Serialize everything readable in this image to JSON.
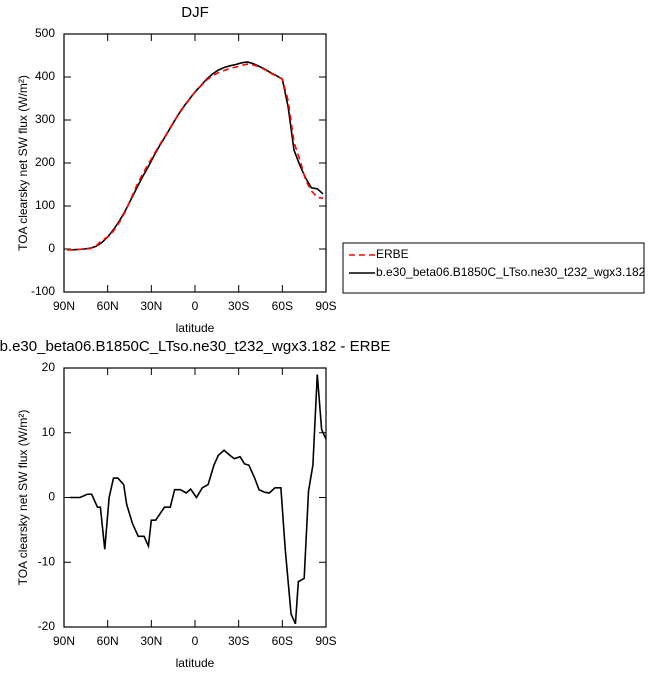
{
  "chart_data": [
    {
      "type": "line",
      "title": "DJF",
      "xlabel": "latitude",
      "ylabel": "TOA clearsky net SW flux (W/m²)",
      "x": [
        88,
        84,
        80,
        76,
        72,
        68,
        64,
        60,
        56,
        52,
        48,
        44,
        40,
        36,
        32,
        28,
        24,
        20,
        16,
        12,
        8,
        4,
        0,
        -4,
        -8,
        -12,
        -16,
        -20,
        -24,
        -28,
        -32,
        -36,
        -40,
        -44,
        -48,
        -52,
        -56,
        -60,
        -64,
        -68,
        -72,
        -76,
        -80,
        -84,
        -88
      ],
      "series": [
        {
          "name": "ERBE",
          "color": "#ff0000",
          "style": "dashed",
          "values": [
            -2,
            -2,
            -1,
            0,
            1,
            7,
            20,
            28,
            42,
            62,
            86,
            117,
            148,
            174,
            198,
            221,
            244,
            265,
            288,
            309,
            329,
            347,
            365,
            379,
            393,
            403,
            410,
            415,
            420,
            423,
            427,
            430,
            428,
            424,
            417,
            409,
            402,
            395,
            345,
            248,
            208,
            160,
            135,
            120,
            118
          ]
        },
        {
          "name": "b.e30_beta06.B1850C_LTso.ne30_t232_wgx3.182",
          "color": "#000000",
          "style": "solid",
          "values": [
            -2,
            -2,
            -1,
            0,
            2,
            6,
            15,
            28,
            45,
            65,
            88,
            115,
            142,
            168,
            192,
            218,
            242,
            264,
            287,
            310,
            330,
            348,
            365,
            380,
            395,
            407,
            416,
            422,
            426,
            429,
            433,
            435,
            431,
            425,
            418,
            410,
            403,
            395,
            330,
            230,
            195,
            165,
            142,
            140,
            128
          ]
        }
      ],
      "xlim": [
        90,
        -90
      ],
      "xticks": [
        {
          "value": 90,
          "label": "90N"
        },
        {
          "value": 60,
          "label": "60N"
        },
        {
          "value": 30,
          "label": "30N"
        },
        0,
        {
          "value": -30,
          "label": "30S"
        },
        {
          "value": -60,
          "label": "60S"
        },
        {
          "value": -90,
          "label": "90S"
        }
      ],
      "ylim": [
        -100,
        500
      ],
      "yticks": [
        -100,
        0,
        100,
        200,
        300,
        400,
        500
      ],
      "legend": "right"
    },
    {
      "type": "line",
      "title": "b.e30_beta06.B1850C_LTso.ne30_t232_wgx3.182 - ERBE",
      "xlabel": "latitude",
      "ylabel": "TOA clearsky net SW flux (W/m²)",
      "x": [
        86,
        82,
        79,
        74,
        71,
        67,
        65,
        62,
        59,
        56,
        53,
        49,
        47,
        43,
        39,
        35,
        32,
        30,
        27,
        24,
        21,
        17,
        14,
        10,
        6,
        3,
        -1,
        -5,
        -9,
        -13,
        -16,
        -20,
        -24,
        -27,
        -31,
        -34,
        -37,
        -41,
        -44,
        -48,
        -51,
        -55,
        -59,
        -62,
        -66,
        -69,
        -71,
        -75,
        -78,
        -81,
        -84,
        -87,
        -90
      ],
      "color": "#000000",
      "values": [
        0,
        0,
        0,
        0.5,
        0.5,
        -1.5,
        -1.5,
        -8,
        0,
        3,
        3,
        2,
        -1,
        -4,
        -6,
        -6,
        -7.5,
        -3.5,
        -3.5,
        -2.5,
        -1.5,
        -1.5,
        1.2,
        1.2,
        0.7,
        1.3,
        0,
        1.5,
        2,
        5,
        6.5,
        7.3,
        6.5,
        6,
        6.3,
        5.2,
        5,
        3,
        1.2,
        0.8,
        0.7,
        1.5,
        1.5,
        -8,
        -18,
        -19.5,
        -13,
        -12.5,
        1,
        5,
        19,
        10.5,
        9
      ],
      "xlim": [
        90,
        -90
      ],
      "xticks": [
        {
          "value": 90,
          "label": "90N"
        },
        {
          "value": 60,
          "label": "60N"
        },
        {
          "value": 30,
          "label": "30N"
        },
        0,
        {
          "value": -30,
          "label": "30S"
        },
        {
          "value": -60,
          "label": "60S"
        },
        {
          "value": -90,
          "label": "90S"
        }
      ],
      "ylim": [
        -20,
        20
      ],
      "yticks": [
        -20,
        -10,
        0,
        10,
        20
      ]
    }
  ]
}
